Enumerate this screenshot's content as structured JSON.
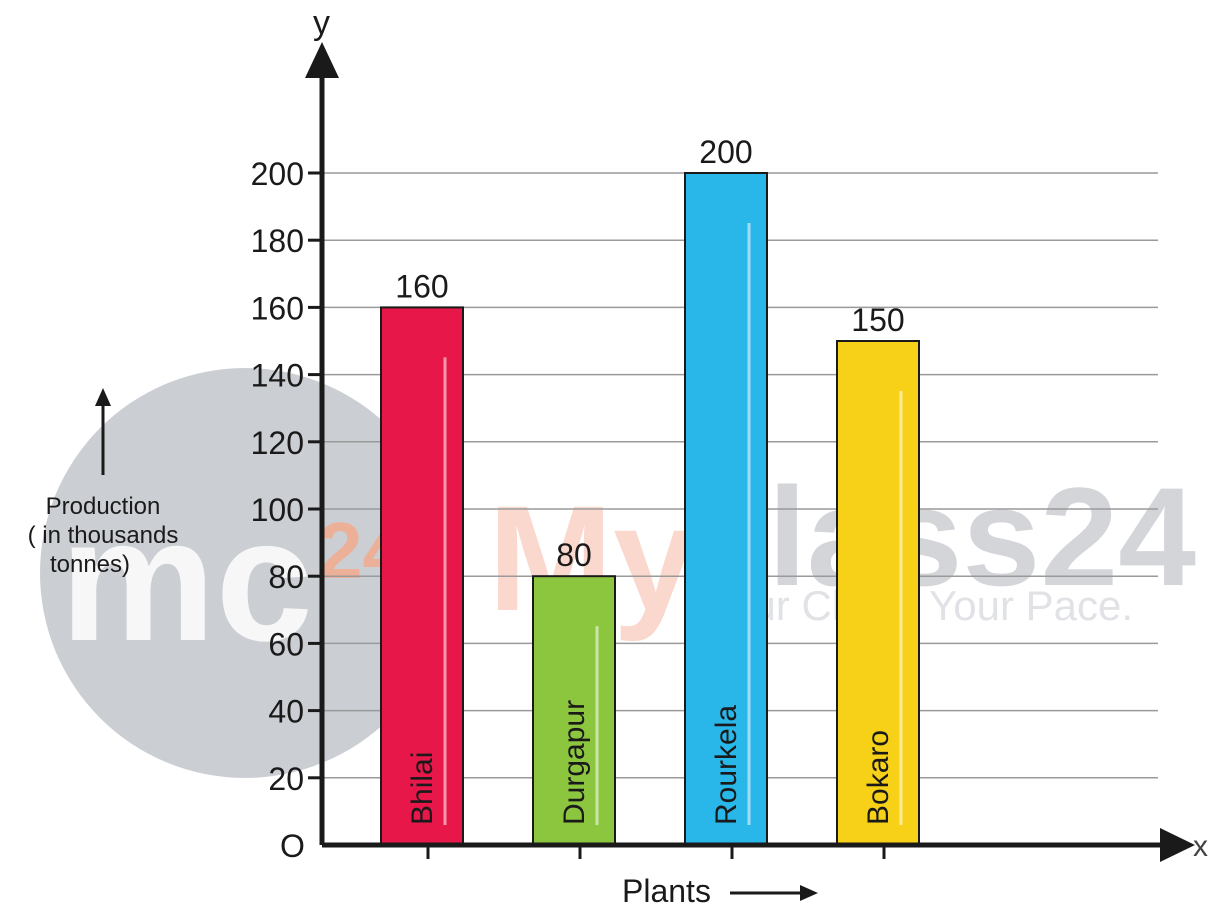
{
  "chart_data": {
    "type": "bar",
    "categories": [
      "Bhilai",
      "Durgapur",
      "Rourkela",
      "Bokaro"
    ],
    "values": [
      160,
      80,
      200,
      150
    ],
    "colors": [
      "#e8174a",
      "#8cc63f",
      "#29b6e8",
      "#f7d117"
    ],
    "xlabel": "Plants",
    "ylabel_lines": [
      "Production",
      "( in thousands",
      "tonnes)"
    ],
    "y_axis_letter": "y",
    "x_axis_letter": "x",
    "origin_label": "O",
    "ylim": [
      0,
      200
    ],
    "yticks": [
      20,
      40,
      60,
      80,
      100,
      120,
      140,
      160,
      180,
      200
    ],
    "grid": true
  },
  "watermark": {
    "logo_text": "mc",
    "logo_number": "24",
    "brand_my": "My",
    "brand_class": "class24",
    "tagline": "Your Class. Your Pace."
  }
}
